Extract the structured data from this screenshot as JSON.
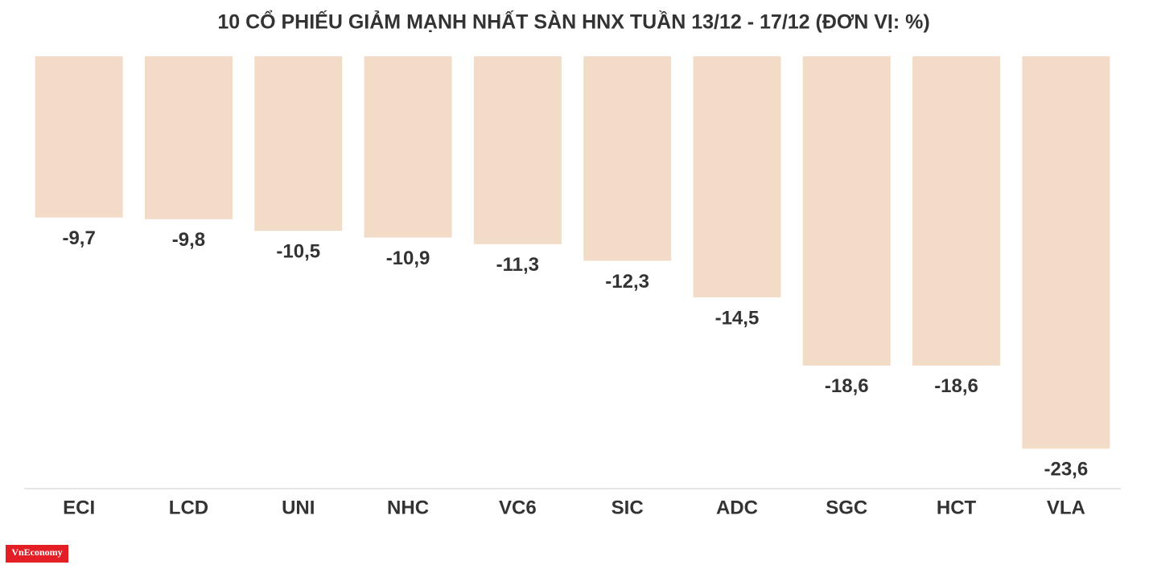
{
  "chart_data": {
    "type": "bar",
    "title": "10 CỔ PHIẾU GIẢM MẠNH NHẤT SÀN HNX TUẦN 13/12 - 17/12 (ĐƠN VỊ: %)",
    "categories": [
      "ECI",
      "LCD",
      "UNI",
      "NHC",
      "VC6",
      "SIC",
      "ADC",
      "SGC",
      "HCT",
      "VLA"
    ],
    "values": [
      -9.7,
      -9.8,
      -10.5,
      -10.9,
      -11.3,
      -12.3,
      -14.5,
      -18.6,
      -18.6,
      -23.6
    ],
    "value_labels": [
      "-9,7",
      "-9,8",
      "-10,5",
      "-10,9",
      "-11,3",
      "-12,3",
      "-14,5",
      "-18,6",
      "-18,6",
      "-23,6"
    ],
    "color": "#f3dcc7",
    "ylim": [
      -26,
      0
    ],
    "logo": "VnEconomy"
  }
}
